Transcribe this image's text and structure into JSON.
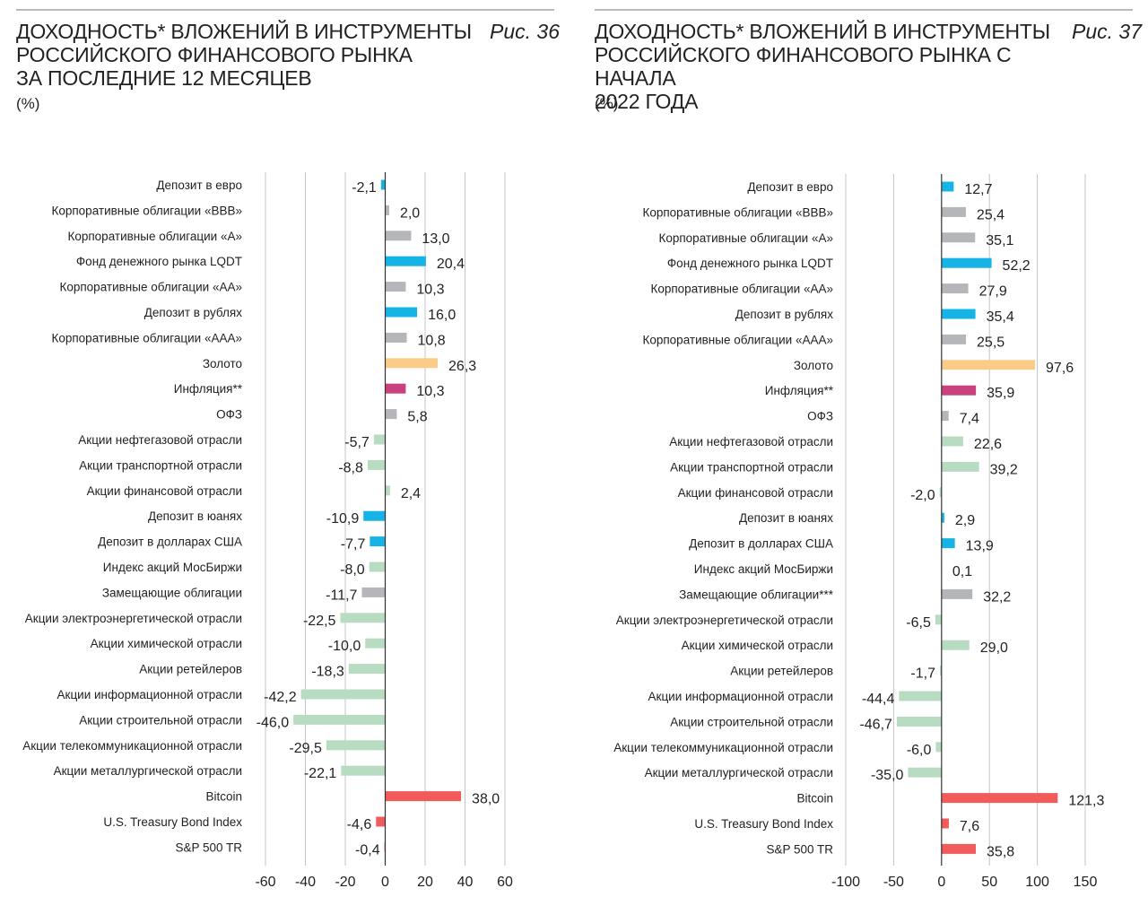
{
  "left": {
    "title_lines": [
      "ДОХОДНОСТЬ* ВЛОЖЕНИЙ В ИНСТРУМЕНТЫ",
      "РОССИЙСКОГО ФИНАНСОВОГО РЫНКА",
      "ЗА ПОСЛЕДНИЕ 12 МЕСЯЦЕВ"
    ],
    "figure_label": "Рис. 36",
    "unit": "(%)"
  },
  "right": {
    "title_lines": [
      "ДОХОДНОСТЬ* ВЛОЖЕНИЙ В ИНСТРУМЕНТЫ",
      "РОССИЙСКОГО ФИНАНСОВОГО РЫНКА С НАЧАЛА",
      "2022 ГОДА"
    ],
    "figure_label": "Рис. 37",
    "unit": "(%)"
  },
  "colors": {
    "blue": "#16b4e6",
    "gray": "#b4b6ba",
    "gold": "#fbcc88",
    "magenta": "#c9417e",
    "green": "#b8dcc1",
    "red": "#f35b5b",
    "grid": "#c4c4c4",
    "axis": "#333333"
  },
  "chart_data": [
    {
      "type": "bar",
      "orientation": "horizontal",
      "categories": [
        "Депозит в евро",
        "Корпоративные облигации «BBB»",
        "Корпоративные облигации «А»",
        "Фонд денежного рынка LQDT",
        "Корпоративные облигации «АА»",
        "Депозит в рублях",
        "Корпоративные облигации «AAA»",
        "Золото",
        "Инфляция**",
        "ОФЗ",
        "Акции нефтегазовой отрасли",
        "Акции транспортной отрасли",
        "Акции финансовой отрасли",
        "Депозит в юанях",
        "Депозит в долларах США",
        "Индекс акций МосБиржи",
        "Замещающие облигации",
        "Акции электроэнергетической отрасли",
        "Акции химической отрасли",
        "Акции ретейлеров",
        "Акции информационной отрасли",
        "Акции строительной отрасли",
        "Акции телекоммуникационной отрасли",
        "Акции металлургической отрасли",
        "Bitcoin",
        "U.S. Treasury Bond Index",
        "S&P 500 TR"
      ],
      "values": [
        -2.1,
        2.0,
        13.0,
        20.4,
        10.3,
        16.0,
        10.8,
        26.3,
        10.3,
        5.8,
        -5.7,
        -8.8,
        2.4,
        -10.9,
        -7.7,
        -8.0,
        -11.7,
        -22.5,
        -10.0,
        -18.3,
        -42.2,
        -46.0,
        -29.5,
        -22.1,
        38.0,
        -4.6,
        -0.4
      ],
      "labels": [
        "-2,1",
        "2,0",
        "13,0",
        "20,4",
        "10,3",
        "16,0",
        "10,8",
        "26,3",
        "10,3",
        "5,8",
        "-5,7",
        "-8,8",
        "2,4",
        "-10,9",
        "-7,7",
        "-8,0",
        "-11,7",
        "-22,5",
        "-10,0",
        "-18,3",
        "-42,2",
        "-46,0",
        "-29,5",
        "-22,1",
        "38,0",
        "-4,6",
        "-0,4"
      ],
      "bar_colors": [
        "blue",
        "gray",
        "gray",
        "blue",
        "gray",
        "blue",
        "gray",
        "gold",
        "magenta",
        "gray",
        "green",
        "green",
        "green",
        "blue",
        "blue",
        "green",
        "gray",
        "green",
        "green",
        "green",
        "green",
        "green",
        "green",
        "green",
        "red",
        "red",
        "red"
      ],
      "xlim": [
        -60,
        60
      ],
      "ticks": [
        -60,
        -40,
        -20,
        0,
        20,
        40,
        60
      ],
      "grid": true
    },
    {
      "type": "bar",
      "orientation": "horizontal",
      "categories": [
        "Депозит в евро",
        "Корпоративные облигации «BBB»",
        "Корпоративные облигации «А»",
        "Фонд денежного рынка LQDT",
        "Корпоративные облигации «АА»",
        "Депозит в рублях",
        "Корпоративные облигации «AAA»",
        "Золото",
        "Инфляция**",
        "ОФЗ",
        "Акции нефтегазовой отрасли",
        "Акции транспортной отрасли",
        "Акции финансовой отрасли",
        "Депозит в юанях",
        "Депозит в долларах США",
        "Индекс акций МосБиржи",
        "Замещающие облигации***",
        "Акции электроэнергетической отрасли",
        "Акции химической отрасли",
        "Акции ретейлеров",
        "Акции информационной отрасли",
        "Акции строительной отрасли",
        "Акции телекоммуникационной отрасли",
        "Акции металлургической отрасли",
        "Bitcoin",
        "U.S. Treasury Bond Index",
        "S&P 500 TR"
      ],
      "values": [
        12.7,
        25.4,
        35.1,
        52.2,
        27.9,
        35.4,
        25.5,
        97.6,
        35.9,
        7.4,
        22.6,
        39.2,
        -2.0,
        2.9,
        13.9,
        0.1,
        32.2,
        -6.5,
        29.0,
        -1.7,
        -44.4,
        -46.7,
        -6.0,
        -35.0,
        121.3,
        7.6,
        35.8
      ],
      "labels": [
        "12,7",
        "25,4",
        "35,1",
        "52,2",
        "27,9",
        "35,4",
        "25,5",
        "97,6",
        "35,9",
        "7,4",
        "22,6",
        "39,2",
        "-2,0",
        "2,9",
        "13,9",
        "0,1",
        "32,2",
        "-6,5",
        "29,0",
        "-1,7",
        "-44,4",
        "-46,7",
        "-6,0",
        "-35,0",
        "121,3",
        "7,6",
        "35,8"
      ],
      "bar_colors": [
        "blue",
        "gray",
        "gray",
        "blue",
        "gray",
        "blue",
        "gray",
        "gold",
        "magenta",
        "gray",
        "green",
        "green",
        "green",
        "blue",
        "blue",
        "green",
        "gray",
        "green",
        "green",
        "green",
        "green",
        "green",
        "green",
        "green",
        "red",
        "red",
        "red"
      ],
      "xlim": [
        -100,
        150
      ],
      "ticks": [
        -100,
        -50,
        0,
        50,
        100,
        150
      ],
      "grid": true
    }
  ]
}
